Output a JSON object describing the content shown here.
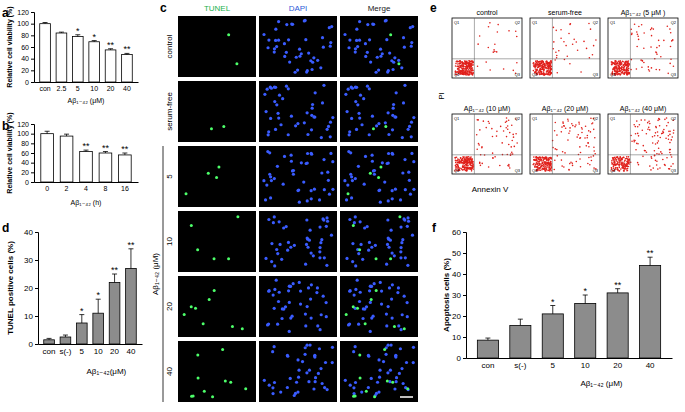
{
  "chart_data": [
    {
      "type": "bar",
      "panel_label": "a",
      "categories": [
        "con",
        "2.5",
        "5",
        "10",
        "20",
        "40"
      ],
      "values": [
        100,
        84,
        78,
        69,
        55,
        47
      ],
      "errors": [
        2,
        1.5,
        3,
        2,
        2,
        2
      ],
      "significance": [
        null,
        null,
        "*",
        "*",
        "**",
        "**"
      ],
      "color": "#ffffff",
      "ylim": [
        0,
        120
      ],
      "yticks": [
        0,
        20,
        40,
        60,
        80,
        100,
        120
      ],
      "y_label": "Relative cell viability (%)",
      "x_label": "Aβ₁₋₄₂ (μM)"
    },
    {
      "type": "bar",
      "panel_label": "b",
      "categories": [
        "0",
        "2",
        "4",
        "8",
        "16"
      ],
      "values": [
        100,
        95,
        63,
        60,
        56
      ],
      "errors": [
        5,
        4,
        3,
        3,
        4
      ],
      "significance": [
        null,
        null,
        "**",
        "**",
        "**"
      ],
      "color": "#ffffff",
      "ylim": [
        0,
        120
      ],
      "yticks": [
        0,
        20,
        40,
        60,
        80,
        100,
        120
      ],
      "y_label": "Relative cell viability (%)",
      "x_label": "Aβ₁₋₄₂ (h)"
    },
    {
      "type": "bar",
      "panel_label": "d",
      "categories": [
        "con",
        "s(-)",
        "5",
        "10",
        "20",
        "40"
      ],
      "values": [
        1.5,
        2.5,
        7.5,
        11,
        22,
        27
      ],
      "errors": [
        0.5,
        0.7,
        3,
        5,
        3,
        7
      ],
      "significance": [
        null,
        null,
        "*",
        "*",
        "**",
        "**"
      ],
      "color": "#8c8c8c",
      "ylim": [
        0,
        40
      ],
      "yticks": [
        0,
        10,
        20,
        30,
        40
      ],
      "y_label": "TUNEL positive cells (%)",
      "x_label": "Aβ₁₋₄₂(μM)"
    },
    {
      "type": "bar",
      "panel_label": "f",
      "categories": [
        "con",
        "s(-)",
        "5",
        "10",
        "20",
        "40"
      ],
      "values": [
        8.5,
        15.5,
        21,
        26,
        31,
        44
      ],
      "errors": [
        1,
        3,
        4,
        4,
        2,
        4
      ],
      "significance": [
        null,
        null,
        "*",
        "*",
        "**",
        "**"
      ],
      "color": "#8c8c8c",
      "ylim": [
        0,
        60
      ],
      "yticks": [
        0,
        10,
        20,
        30,
        40,
        50,
        60
      ],
      "y_label": "Apoptosis cells (%)",
      "x_label": "Aβ₁₋₄₂ (μM)"
    }
  ],
  "micrographs": {
    "panel_label": "c",
    "columns": [
      "TUNEL",
      "DAPI",
      "Merge"
    ],
    "rows": [
      "control",
      "serum-free",
      "5",
      "10",
      "20",
      "40"
    ],
    "row_group": "Aβ₁₋₄₂ (μM)"
  },
  "flow_cytometry": {
    "panel_label": "e",
    "plots": [
      "control",
      "serum-free",
      "Aβ₁₋₄₂ (5 μM )",
      "Aβ₁₋₄₂ (10 μM)",
      "Aβ₁₋₄₂ (20 μM)",
      "Aβ₁₋₄₂ (40 μM)"
    ],
    "quadrants": [
      "Q1",
      "Q2",
      "Q3",
      "Q4"
    ],
    "x_label": "Annexin V",
    "y_label": "PI"
  }
}
